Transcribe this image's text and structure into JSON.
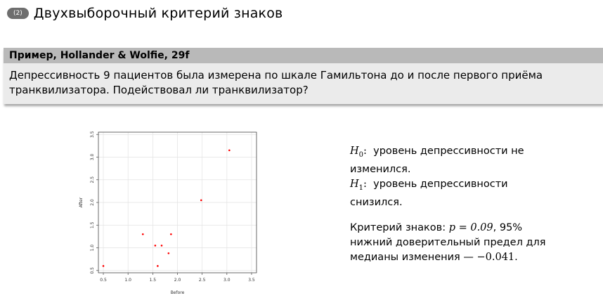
{
  "slide": {
    "number": "(2)",
    "title": "Двухвыборочный критерий знаков"
  },
  "example": {
    "title": "Пример, Hollander & Wolfie, 29f",
    "body_line1": "Депрессивность 9 пациентов была измерена по шкале Гамильтона до и после первого приёма",
    "body_line2": "транквилизатора. Подействовал ли транквилизатор?"
  },
  "hypotheses": {
    "h0_symbol": "H",
    "h0_sub": "0",
    "h0_line1": "уровень депрессивности не",
    "h0_line2": "изменился.",
    "h1_symbol": "H",
    "h1_sub": "1",
    "h1_line1": "уровень депрессивности",
    "h1_line2": "снизился."
  },
  "result": {
    "line1_prefix": "Критерий знаков:",
    "p_expr": "p = 0.09",
    "line1_suffix": ", 95%",
    "line2": "нижний доверительный предел для",
    "line3_prefix": "медианы изменения —",
    "value": "−0.041",
    "line3_suffix": "."
  },
  "chart_data": {
    "type": "scatter",
    "xlabel": "Before",
    "ylabel": "After",
    "xlim": [
      0.4,
      3.6
    ],
    "ylim": [
      0.45,
      3.55
    ],
    "xticks": [
      0.5,
      1.0,
      1.5,
      2.0,
      2.5,
      3.0,
      3.5
    ],
    "yticks": [
      0.5,
      1.0,
      1.5,
      2.0,
      2.5,
      3.0,
      3.5
    ],
    "xtick_labels": [
      "0.5",
      "1.0",
      "1.5",
      "2.0",
      "2.5",
      "3.0",
      "3.5"
    ],
    "ytick_labels": [
      "0.5",
      "1.0",
      "1.5",
      "2.0",
      "2.5",
      "3.0",
      "3.5"
    ],
    "grid": true,
    "point_color": "#ff0000",
    "points": [
      {
        "x": 0.5,
        "y": 0.6
      },
      {
        "x": 1.3,
        "y": 1.3
      },
      {
        "x": 1.55,
        "y": 1.05
      },
      {
        "x": 1.6,
        "y": 0.6
      },
      {
        "x": 1.68,
        "y": 1.05
      },
      {
        "x": 1.82,
        "y": 0.88
      },
      {
        "x": 1.87,
        "y": 1.3
      },
      {
        "x": 2.48,
        "y": 2.05
      },
      {
        "x": 3.05,
        "y": 3.15
      }
    ]
  }
}
